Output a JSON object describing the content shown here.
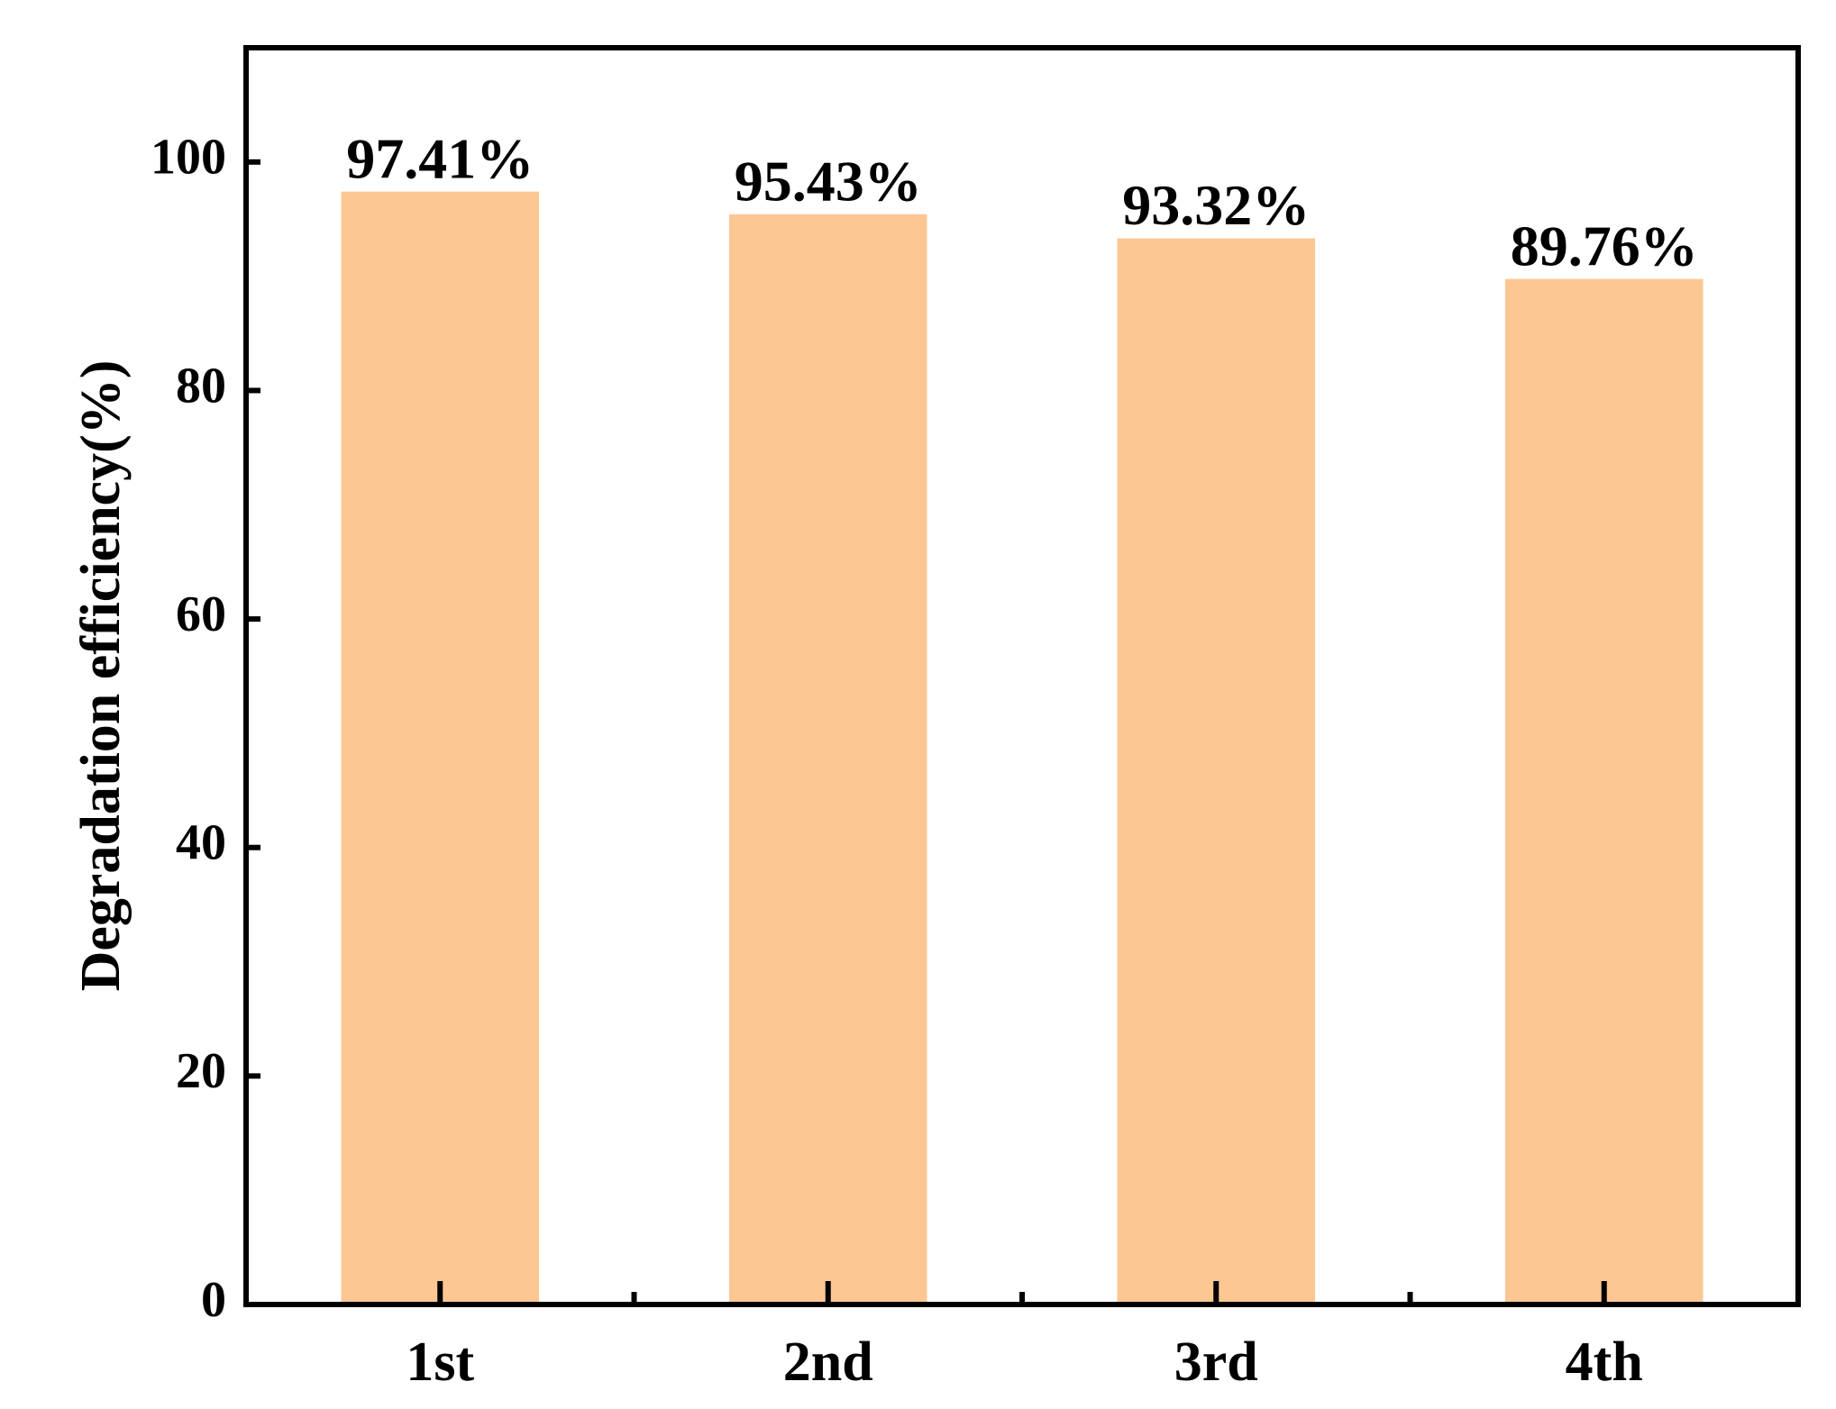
{
  "chart_data": {
    "type": "bar",
    "y_label": "Degradation efficiency(%)",
    "categories": [
      "1st",
      "2nd",
      "3rd",
      "4th"
    ],
    "values": [
      97.41,
      95.43,
      93.32,
      89.76
    ],
    "value_labels": [
      "97.41%",
      "95.43%",
      "93.32%",
      "89.76%"
    ],
    "color": "#fdc794",
    "ylim": [
      0,
      110
    ],
    "yticks": [
      0,
      20,
      40,
      60,
      80,
      100
    ],
    "grid": false
  }
}
